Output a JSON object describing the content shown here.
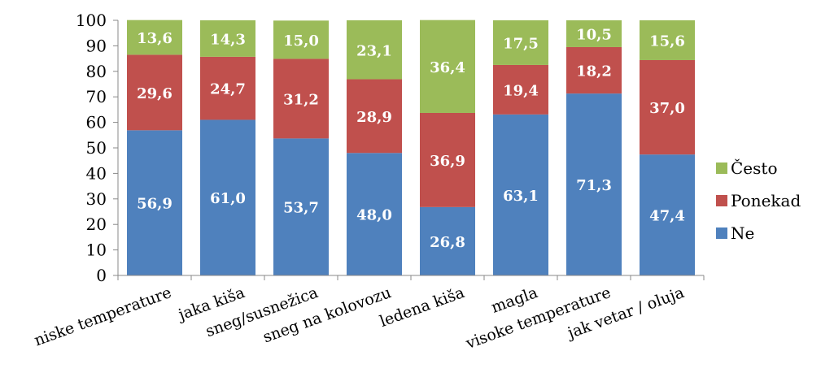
{
  "chart_data": {
    "type": "bar",
    "stacked": true,
    "categories": [
      "niske temperature",
      "jaka kiša",
      "sneg/susnežica",
      "sneg na kolovozu",
      "ledena kiša",
      "magla",
      "visoke temperature",
      "jak vetar / oluja"
    ],
    "series": [
      {
        "name": "Ne",
        "color": "#4f81bd",
        "values": [
          56.9,
          61.0,
          53.7,
          48.0,
          26.8,
          63.1,
          71.3,
          47.4
        ],
        "labels": [
          "56,9",
          "61,0",
          "53,7",
          "48,0",
          "26,8",
          "63,1",
          "71,3",
          "47,4"
        ]
      },
      {
        "name": "Ponekad",
        "color": "#c0504d",
        "values": [
          29.6,
          24.7,
          31.2,
          28.9,
          36.9,
          19.4,
          18.2,
          37.0
        ],
        "labels": [
          "29,6",
          "24,7",
          "31,2",
          "28,9",
          "36,9",
          "19,4",
          "18,2",
          "37,0"
        ]
      },
      {
        "name": "Često",
        "color": "#9bbb59",
        "values": [
          13.6,
          14.3,
          15.0,
          23.1,
          36.4,
          17.5,
          10.5,
          15.6
        ],
        "labels": [
          "13,6",
          "14,3",
          "15,0",
          "23,1",
          "36,4",
          "17,5",
          "10,5",
          "15,6"
        ]
      }
    ],
    "ylim": [
      0,
      100
    ],
    "yticks": [
      0,
      10,
      20,
      30,
      40,
      50,
      60,
      70,
      80,
      90,
      100
    ],
    "ytick_labels": [
      "0",
      "10",
      "20",
      "30",
      "40",
      "50",
      "60",
      "70",
      "80",
      "90",
      "100"
    ],
    "legend_order": [
      "Često",
      "Ponekad",
      "Ne"
    ],
    "legend_position": "right",
    "grid": false,
    "title": "",
    "xlabel": "",
    "ylabel": ""
  }
}
